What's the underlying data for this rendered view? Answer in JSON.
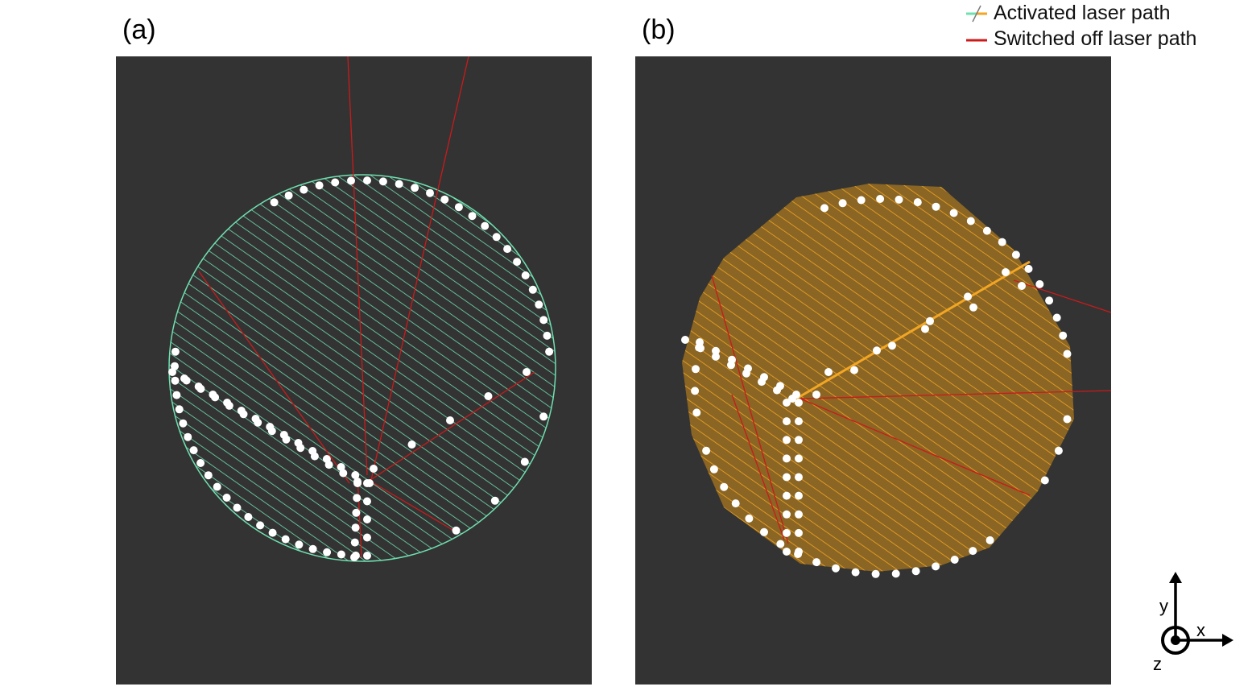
{
  "panels": [
    {
      "id": "a",
      "label": "(a)",
      "activated_color": "#6fe0b0"
    },
    {
      "id": "b",
      "label": "(b)",
      "activated_color": "#f2a623"
    }
  ],
  "legend": {
    "activated_label": "Activated laser path",
    "switched_off_label": "Switched off laser path",
    "activated_colors": [
      "#6fe0b0",
      "#f2a623"
    ],
    "switched_off_color": "#cc1a1a"
  },
  "axes": {
    "x": "x",
    "y": "y",
    "z": "z"
  },
  "colors": {
    "background": "#333333",
    "dots": "#ffffff",
    "switched_off": "#cc1a1a"
  }
}
